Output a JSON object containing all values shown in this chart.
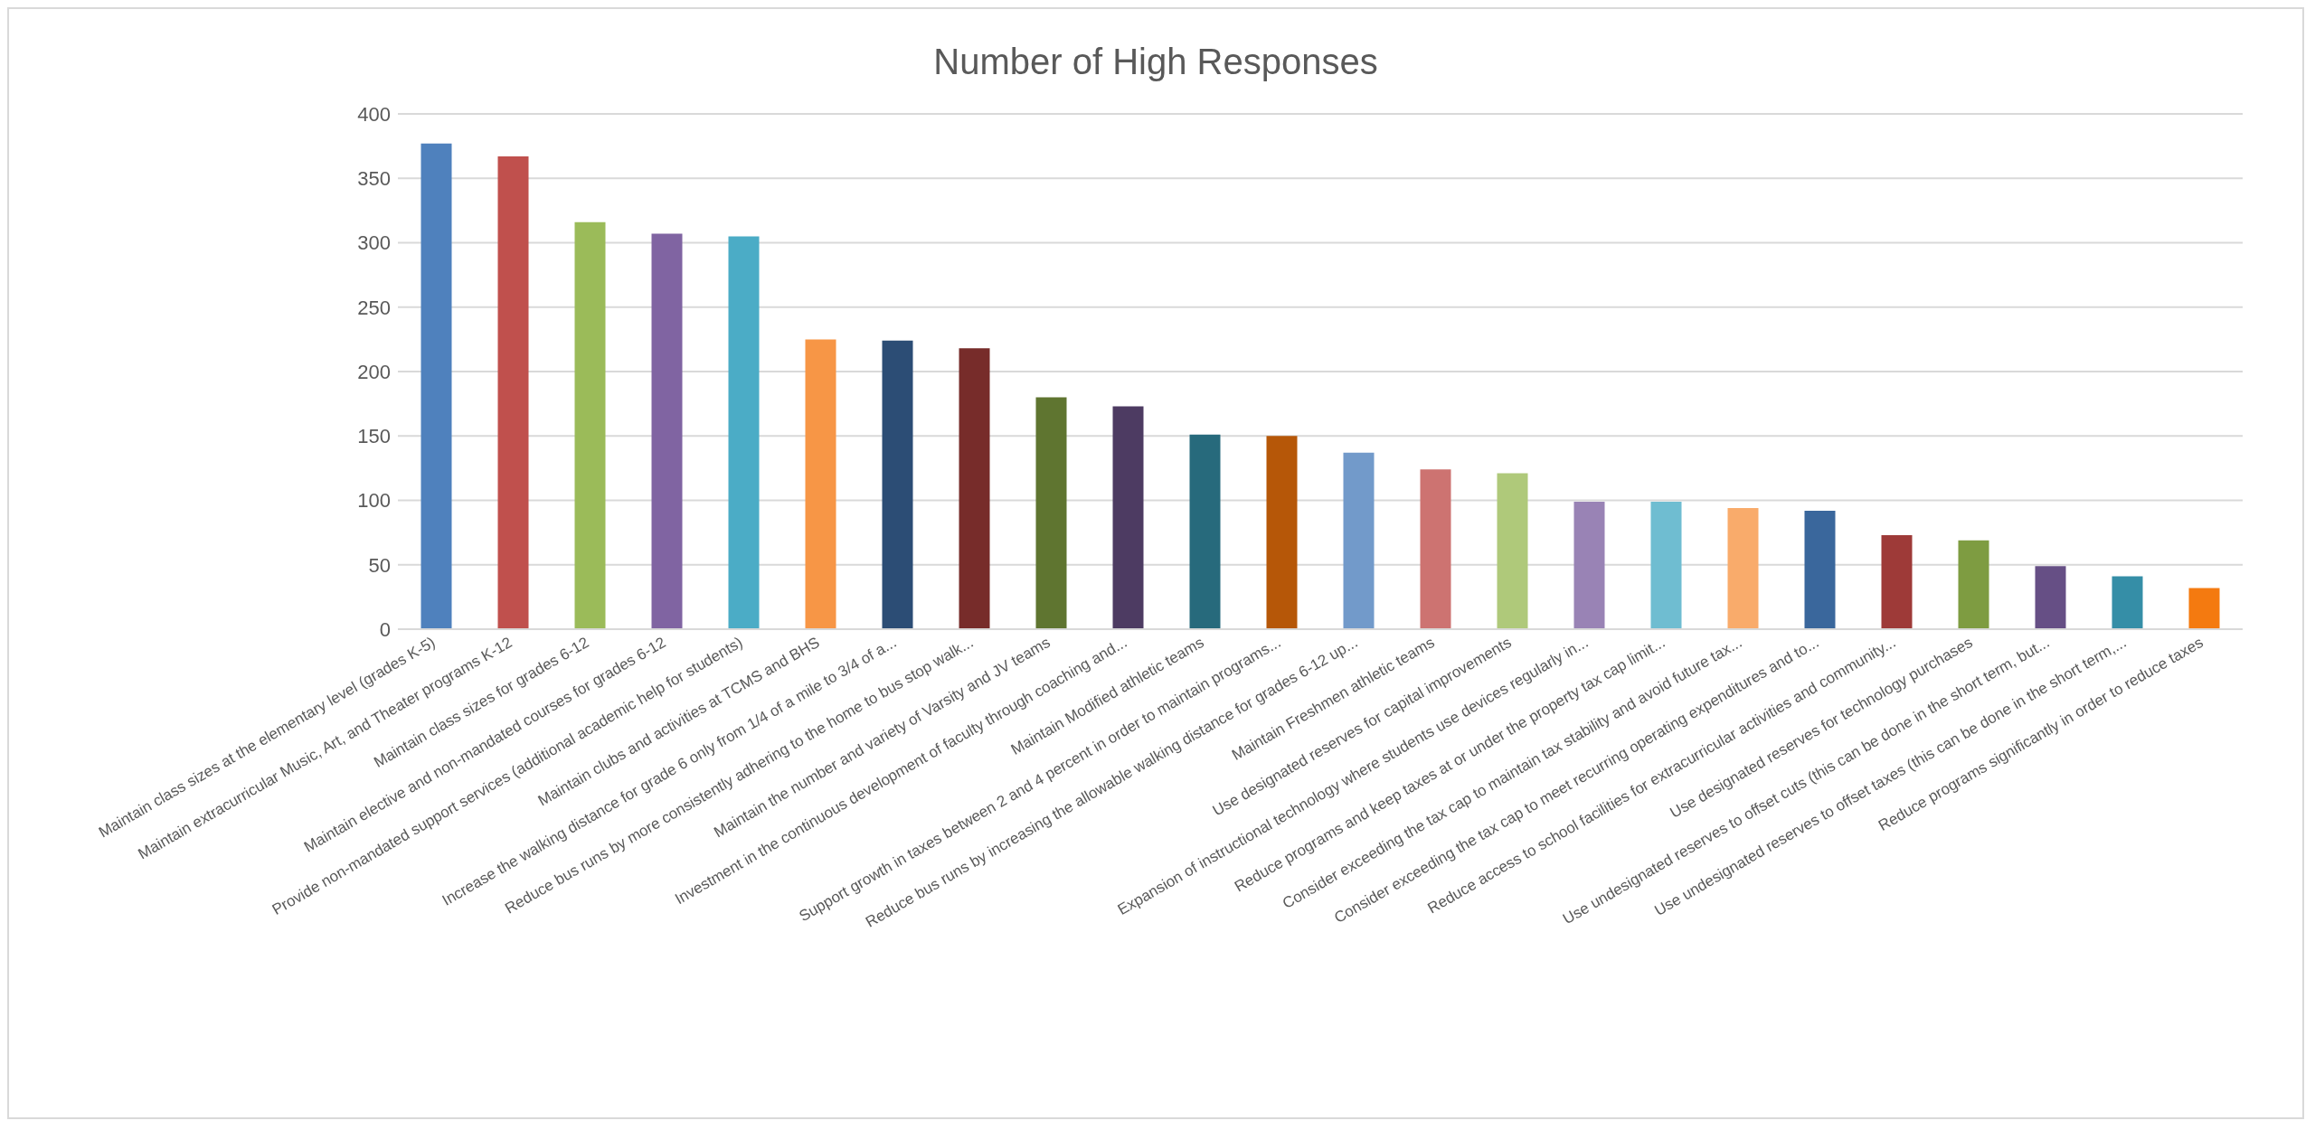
{
  "chart_data": {
    "type": "bar",
    "title": "Number of High Responses",
    "categories": [
      "Maintain class sizes at the elementary level (grades K-5)",
      "Maintain extracurricular Music, Art, and Theater programs K-12",
      "Maintain class sizes for grades 6-12",
      "Maintain elective and non-mandated courses for grades 6-12",
      "Provide non-mandated support services (additional academic help for students)",
      "Maintain clubs and activities at TCMS and BHS",
      "Increase the walking distance for grade 6 only from 1/4 of a mile to 3/4 of a...",
      "Reduce bus runs by more consistently adhering to the home to bus stop walk...",
      "Maintain the number and variety of Varsity and JV teams",
      "Investment in the continuous development of faculty through coaching and...",
      "Maintain Modified athletic teams",
      "Support growth in taxes between 2 and 4 percent in order to maintain programs...",
      "Reduce bus runs by increasing the allowable walking distance for grades 6-12 up...",
      "Maintain Freshmen athletic teams",
      "Use designated reserves for capital improvements",
      "Expansion of instructional technology where students use devices regularly in...",
      "Reduce programs and keep taxes at or under the property tax cap limit...",
      "Consider exceeding the tax cap to maintain tax stability and avoid future tax...",
      "Consider exceeding the tax cap to meet recurring operating expenditures and to...",
      "Reduce access to school facilities for extracurricular activities and community...",
      "Use designated reserves for technology purchases",
      "Use undesignated reserves to offset cuts (this can be done in the short term, but...",
      "Use undesignated reserves to offset taxes (this can be done in the short term,...",
      "Reduce programs significantly in order to reduce taxes"
    ],
    "values": [
      377,
      367,
      316,
      307,
      305,
      225,
      224,
      218,
      180,
      173,
      151,
      150,
      137,
      124,
      121,
      99,
      99,
      94,
      92,
      73,
      69,
      49,
      41,
      32
    ],
    "colors": [
      "#4f81bd",
      "#c0504d",
      "#9bbb59",
      "#8064a2",
      "#4bacc6",
      "#f79646",
      "#2c4d75",
      "#772c2a",
      "#5f7530",
      "#4d3b62",
      "#276a7c",
      "#b65708",
      "#729aca",
      "#cd7371",
      "#afc97a",
      "#9983b5",
      "#6fbdd1",
      "#f9ab6b",
      "#3a679c",
      "#9e3a38",
      "#7e9c41",
      "#664f85",
      "#358ea7",
      "#f47a10"
    ],
    "ylim": [
      0,
      400
    ],
    "yticks": [
      0,
      50,
      100,
      150,
      200,
      250,
      300,
      350,
      400
    ],
    "grid": "y"
  }
}
